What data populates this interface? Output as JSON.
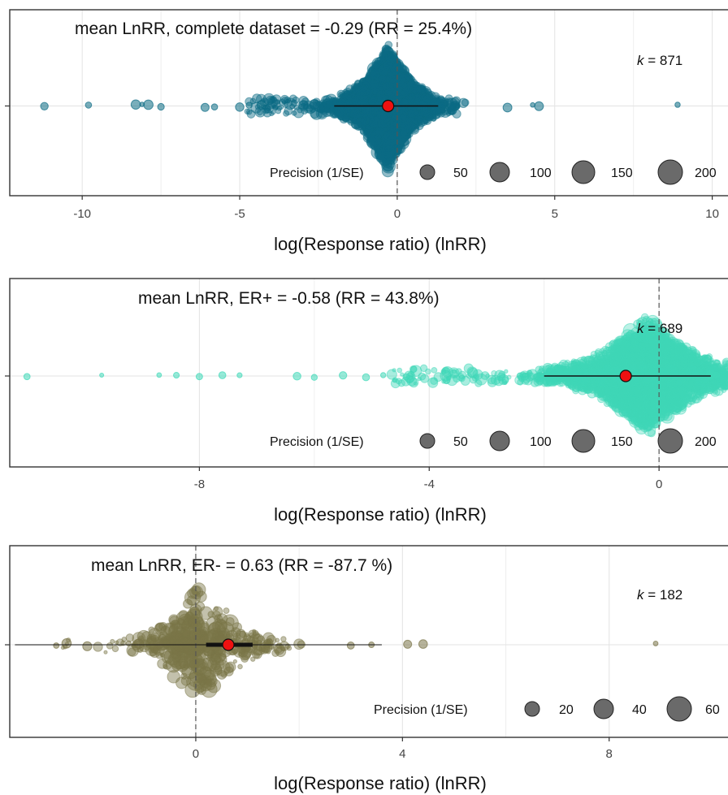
{
  "chart_data": [
    {
      "type": "scatter",
      "title": "mean LnRR, complete dataset = -0.29 (RR = 25.4%)",
      "k_label": "k",
      "k_value": "= 871",
      "xlabel": "log(Response ratio) (lnRR)",
      "xlim": [
        -12.3,
        10.5
      ],
      "x_ticks": [
        -10,
        -5,
        0,
        5,
        10
      ],
      "tick_labels": [
        "-10",
        "-5",
        "0",
        "5",
        "10"
      ],
      "color": "#0b6b84",
      "mean": -0.29,
      "ci": [
        -2.0,
        1.3
      ],
      "reference_line": 0,
      "distribution_peak": -0.3,
      "outliers": [
        -11.2,
        -9.8,
        -8.3,
        -8.1,
        -7.9,
        -7.5,
        -6.1,
        -5.8,
        -5.0,
        -4.7,
        -4.3,
        3.5,
        4.3,
        4.5,
        8.9
      ],
      "legend": {
        "title": "Precision (1/SE)",
        "sizes": [
          50,
          100,
          150,
          200
        ],
        "labels": [
          "50",
          "100",
          "150",
          "200"
        ]
      }
    },
    {
      "type": "scatter",
      "title": "mean LnRR, ER+ = -0.58 (RR = 43.8%)",
      "k_label": "k",
      "k_value": "= 689",
      "xlabel": "log(Response ratio) (lnRR)",
      "xlim": [
        -11.3,
        1.2
      ],
      "x_ticks": [
        -8,
        -4,
        0
      ],
      "tick_labels": [
        "-8",
        "-4",
        "0"
      ],
      "color": "#3fd8b8",
      "mean": -0.58,
      "ci": [
        -2.0,
        0.9
      ],
      "reference_line": 0,
      "distribution_peak": -0.2,
      "outliers": [
        -11.0,
        -9.7,
        -8.7,
        -8.4,
        -8.0,
        -7.6,
        -7.3,
        -6.3,
        -6.0,
        -5.5,
        -5.1,
        -4.8,
        -4.4,
        0.9,
        1.0
      ],
      "legend": {
        "title": "Precision (1/SE)",
        "sizes": [
          50,
          100,
          150,
          200
        ],
        "labels": [
          "50",
          "100",
          "150",
          "200"
        ]
      }
    },
    {
      "type": "scatter",
      "title": "mean LnRR, ER- = 0.63  (RR = -87.7 %)",
      "k_label": "k",
      "k_value": "= 182",
      "xlabel": "log(Response ratio) (lnRR)",
      "xlim": [
        -3.6,
        10.3
      ],
      "x_ticks": [
        0,
        4,
        8
      ],
      "tick_labels": [
        "0",
        "4",
        "8"
      ],
      "color": "#7a7548",
      "mean": 0.63,
      "ci": [
        0.2,
        1.1
      ],
      "reference_line": 0,
      "distribution_peak": 0.1,
      "outliers": [
        -2.7,
        -2.5,
        -2.1,
        -1.3,
        -1.1,
        -0.7,
        3.0,
        3.4,
        4.1,
        4.4,
        8.9
      ],
      "legend": {
        "title": "Precision (1/SE)",
        "sizes": [
          20,
          40,
          60
        ],
        "labels": [
          "20",
          "40",
          "60"
        ]
      }
    }
  ]
}
